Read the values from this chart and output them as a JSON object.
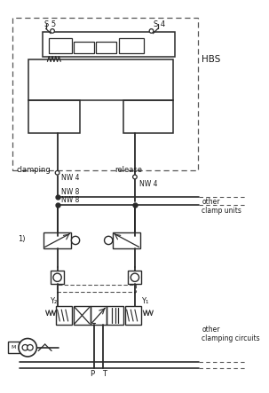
{
  "bg_color": "#ffffff",
  "lc": "#2a2a2a",
  "dc": "#555555",
  "tc": "#1a1a1a",
  "fig_width": 3.03,
  "fig_height": 4.43,
  "dpi": 100,
  "labels": {
    "S5": "S 5",
    "S4": "S 4",
    "HBS": "HBS",
    "clamping": "clamping",
    "release": "release",
    "NW4_left": "NW 4",
    "NW4_right": "NW 4",
    "NW8_top": "NW 8",
    "NW8_bot": "NW 8",
    "other_clamp": "other\nclamp units",
    "other_clamp_circ": "other\nclamping circuits",
    "label1": "1)",
    "Y1": "Y₁",
    "Y2": "Y₂",
    "P": "P",
    "T": "T"
  }
}
